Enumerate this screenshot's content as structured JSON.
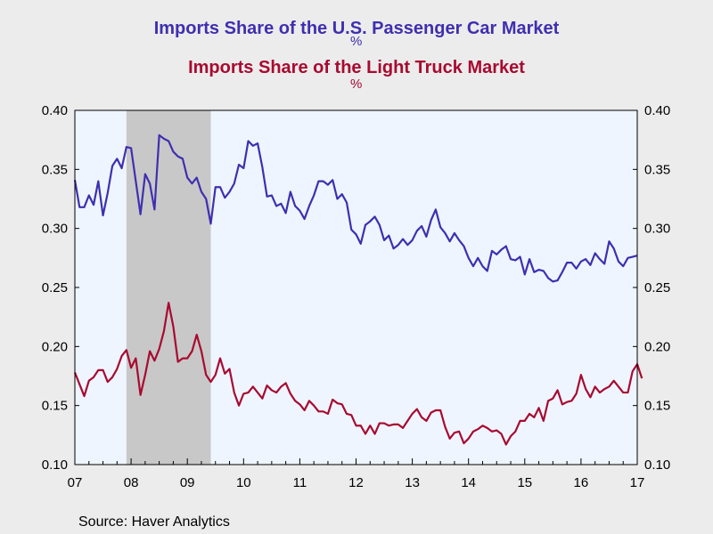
{
  "chart_data": {
    "type": "line",
    "title": "Imports Share of the U.S. Passenger Car Market",
    "title_unit": "%",
    "subtitle": "Imports Share of the Light Truck Market",
    "subtitle_unit": "%",
    "source": "Source:  Haver Analytics",
    "x_start": "2007-01",
    "x_end": "2017-01",
    "xlim_years": [
      2007,
      2017
    ],
    "x_tick_labels": [
      "07",
      "08",
      "09",
      "10",
      "11",
      "12",
      "13",
      "14",
      "15",
      "16",
      "17"
    ],
    "ylim": [
      0.1,
      0.4
    ],
    "y_tick_labels": [
      "0.40",
      "0.35",
      "0.30",
      "0.25",
      "0.20",
      "0.15",
      "0.10"
    ],
    "y_ticks": [
      0.4,
      0.35,
      0.3,
      0.25,
      0.2,
      0.15,
      0.1
    ],
    "recession": {
      "start": "2007-12",
      "end": "2009-06",
      "color": "#c8c8c8"
    },
    "plot_background": "#eef5ff",
    "grid": false,
    "series": [
      {
        "color": "#3f2fb0",
        "values": [
          0.341,
          0.318,
          0.318,
          0.328,
          0.32,
          0.34,
          0.311,
          0.33,
          0.353,
          0.359,
          0.351,
          0.369,
          0.368,
          0.34,
          0.312,
          0.346,
          0.338,
          0.316,
          0.379,
          0.376,
          0.374,
          0.365,
          0.361,
          0.359,
          0.343,
          0.338,
          0.343,
          0.331,
          0.325,
          0.304,
          0.335,
          0.335,
          0.326,
          0.331,
          0.338,
          0.354,
          0.351,
          0.374,
          0.37,
          0.372,
          0.352,
          0.327,
          0.328,
          0.319,
          0.321,
          0.313,
          0.331,
          0.319,
          0.315,
          0.308,
          0.319,
          0.328,
          0.34,
          0.34,
          0.337,
          0.341,
          0.325,
          0.329,
          0.322,
          0.299,
          0.295,
          0.287,
          0.303,
          0.306,
          0.31,
          0.303,
          0.29,
          0.294,
          0.283,
          0.286,
          0.291,
          0.286,
          0.29,
          0.298,
          0.302,
          0.293,
          0.307,
          0.316,
          0.301,
          0.296,
          0.289,
          0.296,
          0.29,
          0.285,
          0.275,
          0.268,
          0.275,
          0.268,
          0.264,
          0.281,
          0.278,
          0.282,
          0.285,
          0.274,
          0.273,
          0.276,
          0.261,
          0.274,
          0.263,
          0.265,
          0.264,
          0.258,
          0.255,
          0.256,
          0.263,
          0.271,
          0.271,
          0.266,
          0.272,
          0.274,
          0.269,
          0.279,
          0.274,
          0.27,
          0.289,
          0.283,
          0.272,
          0.268,
          0.275,
          0.276,
          0.277
        ]
      },
      {
        "color": "#a80a30",
        "values": [
          0.178,
          0.168,
          0.158,
          0.171,
          0.174,
          0.18,
          0.18,
          0.17,
          0.174,
          0.181,
          0.192,
          0.197,
          0.182,
          0.19,
          0.159,
          0.176,
          0.196,
          0.188,
          0.198,
          0.213,
          0.237,
          0.217,
          0.187,
          0.19,
          0.19,
          0.196,
          0.21,
          0.196,
          0.176,
          0.17,
          0.176,
          0.19,
          0.177,
          0.181,
          0.161,
          0.15,
          0.16,
          0.161,
          0.166,
          0.161,
          0.156,
          0.167,
          0.163,
          0.161,
          0.166,
          0.169,
          0.16,
          0.154,
          0.151,
          0.146,
          0.154,
          0.15,
          0.145,
          0.145,
          0.143,
          0.155,
          0.152,
          0.151,
          0.143,
          0.142,
          0.133,
          0.133,
          0.126,
          0.133,
          0.126,
          0.135,
          0.135,
          0.133,
          0.134,
          0.134,
          0.131,
          0.137,
          0.143,
          0.147,
          0.14,
          0.137,
          0.144,
          0.146,
          0.146,
          0.132,
          0.122,
          0.127,
          0.128,
          0.118,
          0.122,
          0.128,
          0.13,
          0.133,
          0.131,
          0.128,
          0.129,
          0.126,
          0.117,
          0.124,
          0.128,
          0.137,
          0.137,
          0.143,
          0.14,
          0.148,
          0.137,
          0.154,
          0.156,
          0.163,
          0.151,
          0.153,
          0.154,
          0.16,
          0.176,
          0.164,
          0.157,
          0.166,
          0.161,
          0.164,
          0.166,
          0.171,
          0.166,
          0.161,
          0.161,
          0.179,
          0.185,
          0.173
        ]
      }
    ]
  }
}
